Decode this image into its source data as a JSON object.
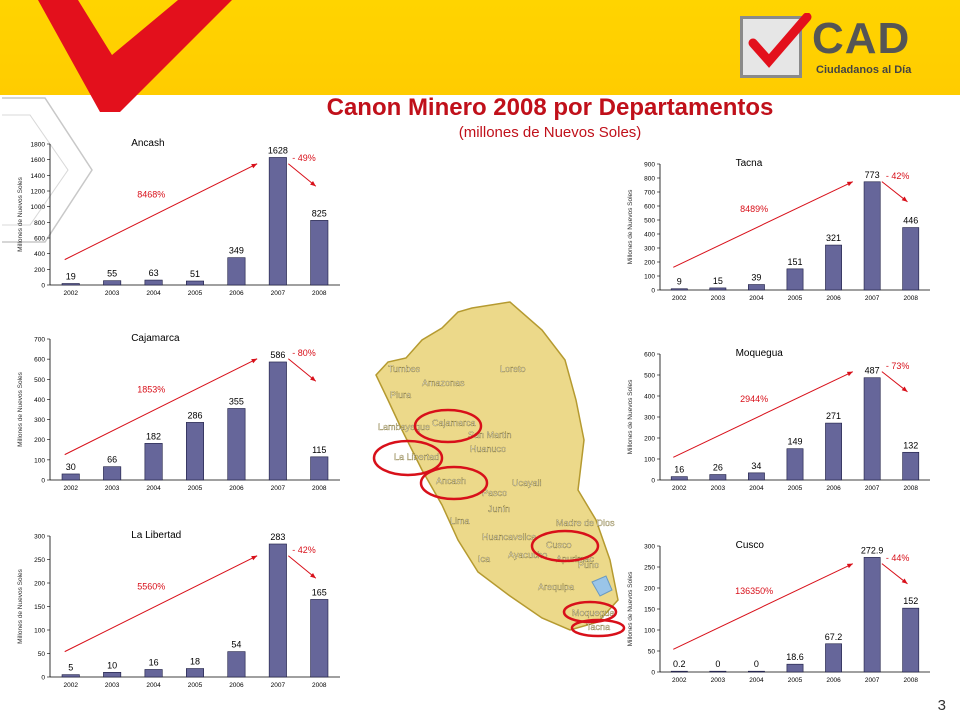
{
  "header": {
    "title": "Canon Minero 2008 por Departamentos",
    "subtitle": "(millones de Nuevos Soles)",
    "logo_main": "CAD",
    "logo_sub": "Ciudadanos al Día",
    "colors": {
      "banner": "#ffcc00",
      "check": "#e3101c",
      "title": "#c0101a"
    }
  },
  "page_number": "3",
  "map": {
    "labels": [
      "Tumbes",
      "Piura",
      "Lambayeque",
      "Amazonas",
      "Loreto",
      "Cajamarca",
      "San Martin",
      "La Libertad",
      "Ancash",
      "Huanuco",
      "Ucayali",
      "Pasco",
      "Junín",
      "Lima",
      "Madre de Dios",
      "Huancavelica",
      "Cusco",
      "Ica",
      "Ayacucho",
      "Apurimac",
      "Puno",
      "Arequipa",
      "Moquegua",
      "Tacna"
    ]
  },
  "chart_data": [
    {
      "id": "ancash",
      "type": "bar",
      "title": "Ancash",
      "ylabel": "Millones de Nuevos Soles",
      "categories": [
        "2002",
        "2003",
        "2004",
        "2005",
        "2006",
        "2007",
        "2008"
      ],
      "values": [
        19,
        55,
        63,
        51,
        349,
        1628,
        825
      ],
      "value_labels": [
        "19",
        "55",
        "63",
        "51",
        "349",
        "1628",
        "825"
      ],
      "ylim": [
        0,
        1800
      ],
      "yticks": [
        0,
        200,
        400,
        600,
        800,
        1000,
        1200,
        1400,
        1600,
        1800
      ],
      "growth_label": "8468%",
      "drop_label": "- 49%"
    },
    {
      "id": "cajamarca",
      "type": "bar",
      "title": "Cajamarca",
      "ylabel": "Millones de Nuevos Soles",
      "categories": [
        "2002",
        "2003",
        "2004",
        "2005",
        "2006",
        "2007",
        "2008"
      ],
      "values": [
        30,
        66,
        182,
        286,
        355,
        586,
        115
      ],
      "value_labels": [
        "30",
        "66",
        "182",
        "286",
        "355",
        "586",
        "115"
      ],
      "ylim": [
        0,
        700
      ],
      "yticks": [
        0,
        100,
        200,
        300,
        400,
        500,
        600,
        700
      ],
      "growth_label": "1853%",
      "drop_label": "- 80%"
    },
    {
      "id": "lalibertad",
      "type": "bar",
      "title": "La Libertad",
      "ylabel": "Millones de Nuevos Soles",
      "categories": [
        "2002",
        "2003",
        "2004",
        "2005",
        "2006",
        "2007",
        "2008"
      ],
      "values": [
        5,
        10,
        16,
        18,
        54,
        283,
        165
      ],
      "value_labels": [
        "5",
        "10",
        "16",
        "18",
        "54",
        "283",
        "165"
      ],
      "ylim": [
        0,
        300
      ],
      "yticks": [
        0,
        50,
        100,
        150,
        200,
        250,
        300
      ],
      "growth_label": "5560%",
      "drop_label": "- 42%"
    },
    {
      "id": "tacna",
      "type": "bar",
      "title": "Tacna",
      "ylabel": "Millones de Nuevos Soles",
      "categories": [
        "2002",
        "2003",
        "2004",
        "2005",
        "2006",
        "2007",
        "2008"
      ],
      "values": [
        9,
        15,
        39,
        151,
        321,
        773,
        446
      ],
      "value_labels": [
        "9",
        "15",
        "39",
        "151",
        "321",
        "773",
        "446"
      ],
      "ylim": [
        0,
        900
      ],
      "yticks": [
        0,
        100,
        200,
        300,
        400,
        500,
        600,
        700,
        800,
        900
      ],
      "growth_label": "8489%",
      "drop_label": "- 42%"
    },
    {
      "id": "moquegua",
      "type": "bar",
      "title": "Moquegua",
      "ylabel": "Millones de Nuevos Soles",
      "categories": [
        "2002",
        "2003",
        "2004",
        "2005",
        "2006",
        "2007",
        "2008"
      ],
      "values": [
        16,
        26,
        34,
        149,
        271,
        487,
        132
      ],
      "value_labels": [
        "16",
        "26",
        "34",
        "149",
        "271",
        "487",
        "132"
      ],
      "ylim": [
        0,
        600
      ],
      "yticks": [
        0,
        100,
        200,
        300,
        400,
        500,
        600
      ],
      "growth_label": "2944%",
      "drop_label": "- 73%"
    },
    {
      "id": "cusco",
      "type": "bar",
      "title": "Cusco",
      "ylabel": "Millones de Nuevos Soles",
      "categories": [
        "2002",
        "2003",
        "2004",
        "2005",
        "2006",
        "2007",
        "2008"
      ],
      "values": [
        0.2,
        0,
        0,
        18.6,
        67.2,
        272.9,
        152
      ],
      "value_labels": [
        "0.2",
        "0",
        "0",
        "18.6",
        "67.2",
        "272.9",
        "152"
      ],
      "ylim": [
        0,
        300
      ],
      "yticks": [
        0,
        50,
        100,
        150,
        200,
        250,
        300
      ],
      "growth_label": "136350%",
      "drop_label": "- 44%"
    }
  ]
}
